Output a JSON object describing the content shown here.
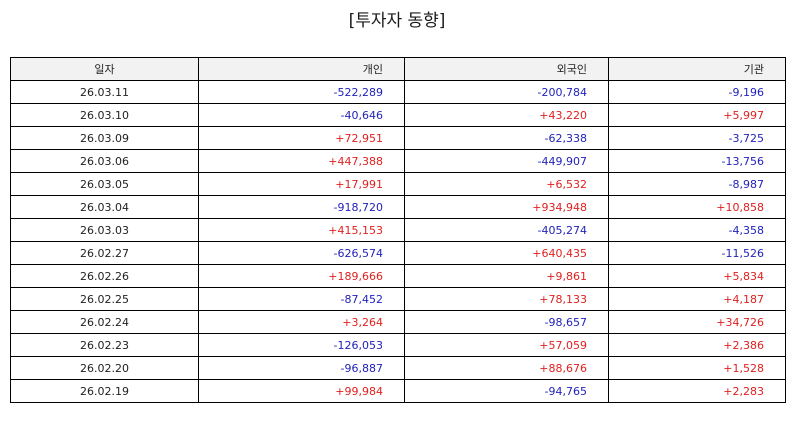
{
  "title": "[투자자 동향]",
  "table": {
    "headers": {
      "date": "일자",
      "individual": "개인",
      "foreign": "외국인",
      "institution": "기관"
    },
    "rows": [
      {
        "date": "26.03.11",
        "individual": "-522,289",
        "foreign": "-200,784",
        "institution": "-9,196"
      },
      {
        "date": "26.03.10",
        "individual": "-40,646",
        "foreign": "+43,220",
        "institution": "+5,997"
      },
      {
        "date": "26.03.09",
        "individual": "+72,951",
        "foreign": "-62,338",
        "institution": "-3,725"
      },
      {
        "date": "26.03.06",
        "individual": "+447,388",
        "foreign": "-449,907",
        "institution": "-13,756"
      },
      {
        "date": "26.03.05",
        "individual": "+17,991",
        "foreign": "+6,532",
        "institution": "-8,987"
      },
      {
        "date": "26.03.04",
        "individual": "-918,720",
        "foreign": "+934,948",
        "institution": "+10,858"
      },
      {
        "date": "26.03.03",
        "individual": "+415,153",
        "foreign": "-405,274",
        "institution": "-4,358"
      },
      {
        "date": "26.02.27",
        "individual": "-626,574",
        "foreign": "+640,435",
        "institution": "-11,526"
      },
      {
        "date": "26.02.26",
        "individual": "+189,666",
        "foreign": "+9,861",
        "institution": "+5,834"
      },
      {
        "date": "26.02.25",
        "individual": "-87,452",
        "foreign": "+78,133",
        "institution": "+4,187"
      },
      {
        "date": "26.02.24",
        "individual": "+3,264",
        "foreign": "-98,657",
        "institution": "+34,726"
      },
      {
        "date": "26.02.23",
        "individual": "-126,053",
        "foreign": "+57,059",
        "institution": "+2,386"
      },
      {
        "date": "26.02.20",
        "individual": "-96,887",
        "foreign": "+88,676",
        "institution": "+1,528"
      },
      {
        "date": "26.02.19",
        "individual": "+99,984",
        "foreign": "-94,765",
        "institution": "+2,283"
      }
    ]
  },
  "colors": {
    "positive": "#e02020",
    "negative": "#2222bb",
    "header_background": "#f2f2f2"
  }
}
